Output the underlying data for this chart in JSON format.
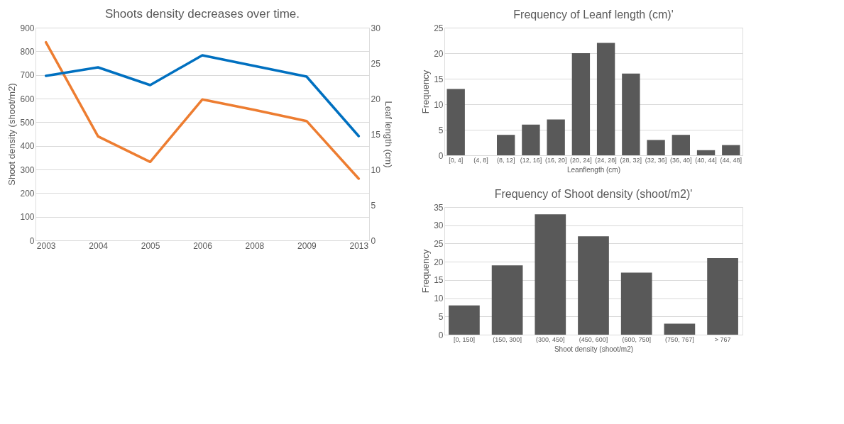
{
  "chart_data": [
    {
      "type": "line",
      "title": "Shoots density decreases over time.",
      "ylabel": "Shoot density (shoot/m2)",
      "y2label": "Leaf length (cm)",
      "categories": [
        "2003",
        "2004",
        "2005",
        "2006",
        "2008",
        "2009",
        "2013"
      ],
      "series": [
        {
          "color": "#ed7d31",
          "values": [
            838,
            440,
            332,
            596,
            552,
            505,
            261
          ]
        },
        {
          "color": "#0070c0",
          "axis": "y2",
          "values": [
            23.2,
            24.4,
            21.9,
            26.1,
            24.6,
            23.1,
            14.7
          ]
        }
      ],
      "ylim": [
        0,
        900
      ],
      "yticks": [
        0,
        100,
        200,
        300,
        400,
        500,
        600,
        700,
        800,
        900
      ],
      "y2lim": [
        0,
        30
      ],
      "y2ticks": [
        0,
        5,
        10,
        15,
        20,
        25,
        30
      ],
      "grid": "y",
      "marker": "none",
      "line_style": "solid"
    },
    {
      "type": "bar",
      "title": "Frequency of Leanf length (cm)'",
      "xlabel": "Leanflength (cm)",
      "ylabel": "Frequency",
      "categories": [
        "[0, 4]",
        "(4, 8]",
        "(8, 12]",
        "(12, 16]",
        "(16, 20]",
        "(20, 24]",
        "(24, 28]",
        "(28, 32]",
        "(32, 36]",
        "(36, 40]",
        "(40, 44]",
        "(44, 48]"
      ],
      "values": [
        13,
        0,
        4,
        6,
        7,
        20,
        22,
        16,
        3,
        4,
        1,
        2
      ],
      "color": "#595959",
      "ylim": [
        0,
        25
      ],
      "yticks": [
        0,
        5,
        10,
        15,
        20,
        25
      ],
      "grid": "y"
    },
    {
      "type": "bar",
      "title": "Frequency of Shoot density (shoot/m2)'",
      "xlabel": "Shoot density (shoot/m2)",
      "ylabel": "Frequency",
      "categories": [
        "[0, 150]",
        "(150, 300]",
        "(300, 450]",
        "(450, 600]",
        "(600, 750]",
        "(750, 767]",
        "> 767"
      ],
      "values": [
        8,
        19,
        33,
        27,
        17,
        3,
        21
      ],
      "color": "#595959",
      "ylim": [
        0,
        35
      ],
      "yticks": [
        0,
        5,
        10,
        15,
        20,
        25,
        30,
        35
      ],
      "grid": "y"
    }
  ]
}
